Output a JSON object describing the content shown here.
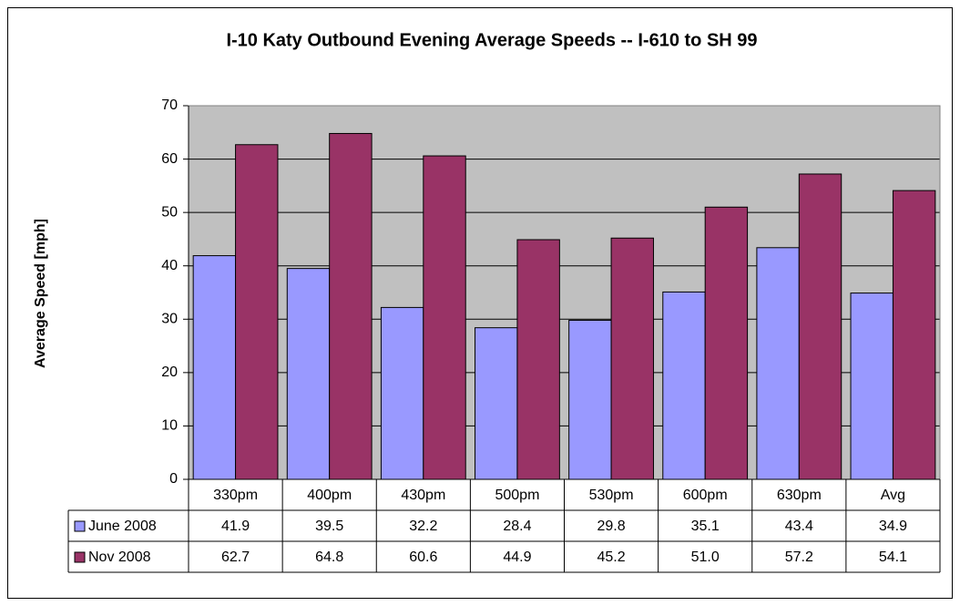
{
  "chart_data": {
    "type": "bar",
    "title": "I-10 Katy Outbound Evening Average Speeds -- I-610 to SH 99",
    "y_label": "Average Speed [mph]",
    "categories": [
      "330pm",
      "400pm",
      "430pm",
      "500pm",
      "530pm",
      "600pm",
      "630pm",
      "Avg"
    ],
    "series": [
      {
        "name": "June 2008",
        "color": "#9999ff",
        "values": [
          41.9,
          39.5,
          32.2,
          28.4,
          29.8,
          35.1,
          43.4,
          34.9
        ],
        "value_labels": [
          "41.9",
          "39.5",
          "32.2",
          "28.4",
          "29.8",
          "35.1",
          "43.4",
          "34.9"
        ]
      },
      {
        "name": "Nov 2008",
        "color": "#993366",
        "values": [
          62.7,
          64.8,
          60.6,
          44.9,
          45.2,
          51,
          57.2,
          54.1
        ],
        "value_labels": [
          "62.7",
          "64.8",
          "60.6",
          "44.9",
          "45.2",
          "51.0",
          "57.2",
          "54.1"
        ]
      }
    ],
    "ylim": [
      0,
      70
    ],
    "yticks": [
      0,
      10,
      20,
      30,
      40,
      50,
      60,
      70
    ],
    "grid": true,
    "plot_background": "#c0c0c0",
    "data_table": true
  }
}
